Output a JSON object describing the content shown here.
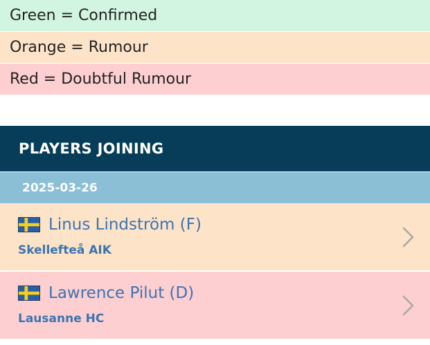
{
  "legend": [
    {
      "label": "Green = Confirmed",
      "color": "#d1f5e1"
    },
    {
      "label": "Orange = Rumour",
      "color": "#fde3c8"
    },
    {
      "label": "Red = Doubtful Rumour",
      "color": "#fecfd1"
    }
  ],
  "section": {
    "title": "PLAYERS JOINING",
    "color": "#073d58"
  },
  "date_group": {
    "date": "2025-03-26",
    "color": "#8bbfd6"
  },
  "players": [
    {
      "name": "Linus Lindström (F)",
      "club": "Skellefteå AIK",
      "flag": "sweden-flag-icon",
      "status": "rumour",
      "row_color": "#fde3c8"
    },
    {
      "name": "Lawrence Pilut (D)",
      "club": "Lausanne HC",
      "flag": "sweden-flag-icon",
      "status": "doubtful",
      "row_color": "#fecfd1"
    }
  ],
  "icons": {
    "row_arrow": "chevron-right-icon"
  },
  "colors": {
    "link_blue": "#3b74b0",
    "chevron_gray": "#a8a8a8"
  }
}
